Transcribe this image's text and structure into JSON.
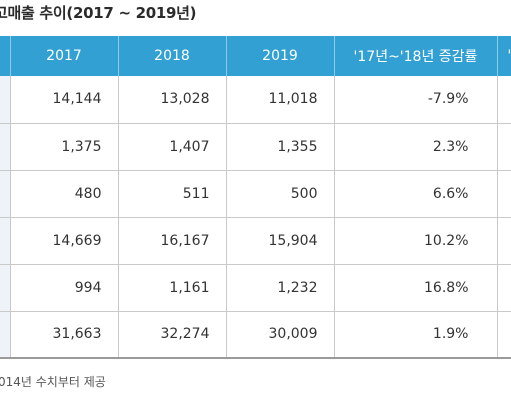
{
  "title": "고매출 추이(2017 ~ 2019년)",
  "table": {
    "headers": [
      "",
      "2017",
      "2018",
      "2019",
      "'17년~'18년 증감률",
      "'"
    ],
    "rows": [
      {
        "v2017": "14,144",
        "v2018": "13,028",
        "v2019": "11,018",
        "rate": "-7.9%"
      },
      {
        "v2017": "1,375",
        "v2018": "1,407",
        "v2019": "1,355",
        "rate": "2.3%"
      },
      {
        "v2017": "480",
        "v2018": "511",
        "v2019": "500",
        "rate": "6.6%"
      },
      {
        "v2017": "14,669",
        "v2018": "16,167",
        "v2019": "15,904",
        "rate": "10.2%"
      },
      {
        "v2017": "994",
        "v2018": "1,161",
        "v2019": "1,232",
        "rate": "16.8%"
      },
      {
        "v2017": "31,663",
        "v2018": "32,274",
        "v2019": "30,009",
        "rate": "1.9%"
      }
    ]
  },
  "footnote": "014년 수치부터 제공",
  "colors": {
    "header_bg": "#33a0d3",
    "header_text": "#ffffff",
    "first_col_bg": "#edf3f8",
    "border": "#c9c9c9"
  }
}
